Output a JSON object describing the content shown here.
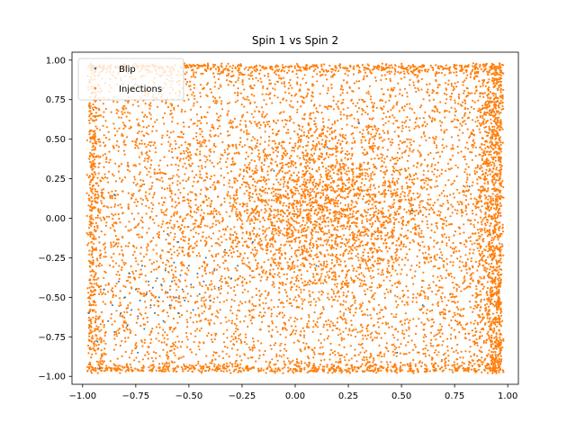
{
  "chart_data": {
    "type": "scatter",
    "title": "Spin 1 vs Spin 2",
    "xlabel": "",
    "ylabel": "",
    "xlim": [
      -1.05,
      1.05
    ],
    "ylim": [
      -1.05,
      1.05
    ],
    "xticks": [
      -1.0,
      -0.75,
      -0.5,
      -0.25,
      0.0,
      0.25,
      0.5,
      0.75,
      1.0
    ],
    "xtick_labels": [
      "−1.00",
      "−0.75",
      "−0.50",
      "−0.25",
      "0.00",
      "0.25",
      "0.50",
      "0.75",
      "1.00"
    ],
    "yticks": [
      -1.0,
      -0.75,
      -0.5,
      -0.25,
      0.0,
      0.25,
      0.5,
      0.75,
      1.0
    ],
    "ytick_labels": [
      "−1.00",
      "−0.75",
      "−0.50",
      "−0.25",
      "0.00",
      "0.25",
      "0.50",
      "0.75",
      "1.00"
    ],
    "grid": false,
    "legend_position": "upper-left",
    "series": [
      {
        "name": "Blip",
        "color": "#1f77b4",
        "points": [
          [
            -0.97,
            -0.6
          ],
          [
            -0.93,
            -0.78
          ],
          [
            -0.9,
            -0.45
          ],
          [
            -0.88,
            -0.65
          ],
          [
            -0.86,
            -0.55
          ],
          [
            -0.85,
            -0.72
          ],
          [
            -0.83,
            -0.4
          ],
          [
            -0.82,
            -0.6
          ],
          [
            -0.8,
            -0.5
          ],
          [
            -0.79,
            -0.68
          ],
          [
            -0.78,
            -0.35
          ],
          [
            -0.77,
            -0.58
          ],
          [
            -0.75,
            -0.45
          ],
          [
            -0.74,
            -0.62
          ],
          [
            -0.73,
            -0.52
          ],
          [
            -0.72,
            -0.3
          ],
          [
            -0.71,
            -0.7
          ],
          [
            -0.7,
            -0.48
          ],
          [
            -0.69,
            -0.4
          ],
          [
            -0.68,
            -0.55
          ],
          [
            -0.67,
            -0.44
          ],
          [
            -0.66,
            -0.6
          ],
          [
            -0.65,
            -0.38
          ],
          [
            -0.64,
            -0.5
          ],
          [
            -0.63,
            -0.42
          ],
          [
            -0.62,
            -0.65
          ],
          [
            -0.61,
            -0.33
          ],
          [
            -0.6,
            -0.47
          ],
          [
            -0.59,
            -0.55
          ],
          [
            -0.58,
            -0.4
          ],
          [
            -0.57,
            -0.28
          ],
          [
            -0.56,
            -0.5
          ],
          [
            -0.55,
            -0.6
          ],
          [
            -0.54,
            -0.36
          ],
          [
            -0.53,
            -0.45
          ],
          [
            -0.52,
            -0.52
          ],
          [
            -0.5,
            -0.3
          ],
          [
            -0.49,
            -0.42
          ],
          [
            -0.48,
            -0.58
          ],
          [
            -0.46,
            -0.35
          ],
          [
            -0.45,
            -0.48
          ],
          [
            -0.43,
            -0.4
          ],
          [
            -0.42,
            -0.25
          ],
          [
            -0.4,
            -0.52
          ],
          [
            -0.38,
            -0.33
          ],
          [
            -0.36,
            -0.44
          ],
          [
            -0.33,
            -0.2
          ],
          [
            -0.3,
            -0.38
          ],
          [
            -0.92,
            -0.95
          ],
          [
            -0.74,
            -0.85
          ],
          [
            -0.55,
            -0.15
          ],
          [
            -0.6,
            -0.1
          ],
          [
            -0.27,
            -0.3
          ],
          [
            -0.2,
            -0.15
          ],
          [
            0.1,
            -0.3
          ],
          [
            0.68,
            -0.25
          ],
          [
            0.48,
            -0.85
          ],
          [
            0.82,
            0.2
          ],
          [
            0.3,
            0.6
          ],
          [
            -0.85,
            0.15
          ],
          [
            0.15,
            0.45
          ],
          [
            0.55,
            0.05
          ],
          [
            -0.1,
            0.3
          ],
          [
            0.6,
            -0.55
          ]
        ]
      },
      {
        "name": "Injections",
        "color": "#ff7f0e",
        "distribution": "dense uniform cover of [-0.98, 0.98] x [-0.98, 0.98] with concentration near (0.1, 0.05) and along right edge x≈0.97"
      }
    ]
  }
}
